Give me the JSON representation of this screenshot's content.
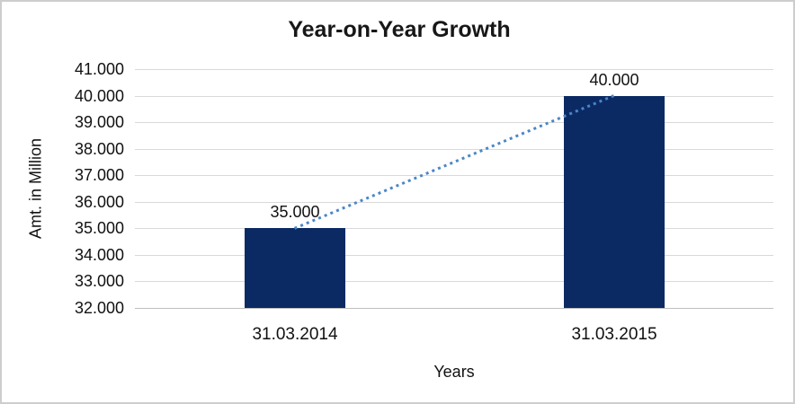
{
  "window": {
    "background": "#ffffff",
    "border_color": "#cdcdcd"
  },
  "chart_data": {
    "type": "bar",
    "title": "Year-on-Year Growth",
    "xlabel": "Years",
    "ylabel": "Amt. in Million",
    "categories": [
      "31.03.2014",
      "31.03.2015"
    ],
    "values": [
      35000,
      40000
    ],
    "data_labels": [
      "35.000",
      "40.000"
    ],
    "y_tick_values": [
      32000,
      33000,
      34000,
      35000,
      36000,
      37000,
      38000,
      39000,
      40000,
      41000
    ],
    "y_tick_labels": [
      "32.000",
      "33.000",
      "34.000",
      "35.000",
      "36.000",
      "37.000",
      "38.000",
      "39.000",
      "40.000",
      "41.000"
    ],
    "ylim": [
      32000,
      41000
    ],
    "grid": true,
    "legend": "none",
    "bar_color": "#0b2a63",
    "gridline_color": "#d9d9d9",
    "axis_line_color": "#bfbfbf",
    "text_color": "#111111",
    "trendline": {
      "type": "linear",
      "style": "dotted",
      "color": "#4a86c8"
    }
  }
}
